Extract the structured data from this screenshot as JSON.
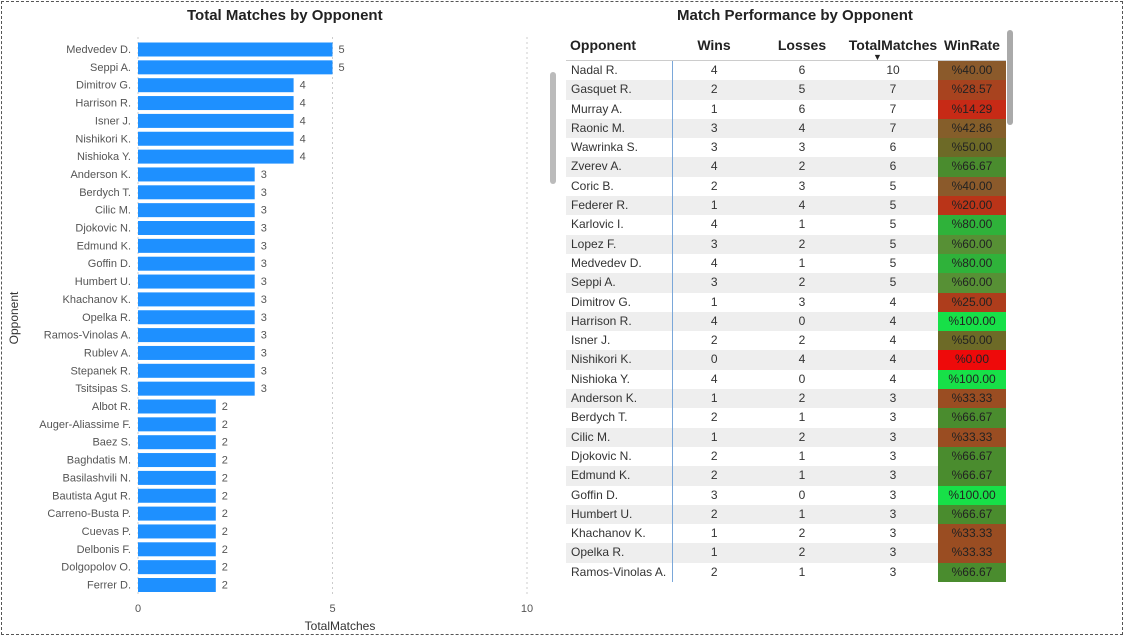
{
  "bar_title": "Total Matches by Opponent",
  "table_title": "Match Performance by Opponent",
  "chart_data": [
    {
      "type": "bar",
      "orientation": "horizontal",
      "title": "Total Matches by Opponent",
      "xlabel": "TotalMatches",
      "ylabel": "Opponent",
      "xlim": [
        0,
        10
      ],
      "xticks": [
        "0",
        "5",
        "10"
      ],
      "color": "#1e90ff",
      "categories": [
        "Medvedev D.",
        "Seppi A.",
        "Dimitrov G.",
        "Harrison R.",
        "Isner J.",
        "Nishikori K.",
        "Nishioka Y.",
        "Anderson K.",
        "Berdych T.",
        "Cilic M.",
        "Djokovic N.",
        "Edmund K.",
        "Goffin D.",
        "Humbert U.",
        "Khachanov K.",
        "Opelka R.",
        "Ramos-Vinolas A.",
        "Rublev A.",
        "Stepanek R.",
        "Tsitsipas S.",
        "Albot R.",
        "Auger-Aliassime F.",
        "Baez S.",
        "Baghdatis M.",
        "Basilashvili N.",
        "Bautista Agut R.",
        "Carreno-Busta P.",
        "Cuevas P.",
        "Delbonis F.",
        "Dolgopolov O.",
        "Ferrer D."
      ],
      "values": [
        5,
        5,
        4,
        4,
        4,
        4,
        4,
        3,
        3,
        3,
        3,
        3,
        3,
        3,
        3,
        3,
        3,
        3,
        3,
        3,
        2,
        2,
        2,
        2,
        2,
        2,
        2,
        2,
        2,
        2,
        2
      ]
    },
    {
      "type": "table",
      "title": "Match Performance by Opponent",
      "columns": [
        "Opponent",
        "Wins",
        "Losses",
        "TotalMatches",
        "WinRate"
      ],
      "sort_indicator": "▼",
      "rows": [
        {
          "opponent": "Nadal R.",
          "wins": "4",
          "losses": "6",
          "total": "10",
          "rate": "%40.00",
          "color": "#8b5a2b"
        },
        {
          "opponent": "Gasquet R.",
          "wins": "2",
          "losses": "5",
          "total": "7",
          "rate": "%28.57",
          "color": "#a8431f"
        },
        {
          "opponent": "Murray A.",
          "wins": "1",
          "losses": "6",
          "total": "7",
          "rate": "%14.29",
          "color": "#c72a16"
        },
        {
          "opponent": "Raonic M.",
          "wins": "3",
          "losses": "4",
          "total": "7",
          "rate": "%42.86",
          "color": "#855e2a"
        },
        {
          "opponent": "Wawrinka S.",
          "wins": "3",
          "losses": "3",
          "total": "6",
          "rate": "%50.00",
          "color": "#6d6a27"
        },
        {
          "opponent": "Zverev A.",
          "wins": "4",
          "losses": "2",
          "total": "6",
          "rate": "%66.67",
          "color": "#4a8c2e"
        },
        {
          "opponent": "Coric B.",
          "wins": "2",
          "losses": "3",
          "total": "5",
          "rate": "%40.00",
          "color": "#8b5a2b"
        },
        {
          "opponent": "Federer R.",
          "wins": "1",
          "losses": "4",
          "total": "5",
          "rate": "%20.00",
          "color": "#ba3418"
        },
        {
          "opponent": "Karlovic I.",
          "wins": "4",
          "losses": "1",
          "total": "5",
          "rate": "%80.00",
          "color": "#2fb23a"
        },
        {
          "opponent": "Lopez F.",
          "wins": "3",
          "losses": "2",
          "total": "5",
          "rate": "%60.00",
          "color": "#579035"
        },
        {
          "opponent": "Medvedev D.",
          "wins": "4",
          "losses": "1",
          "total": "5",
          "rate": "%80.00",
          "color": "#2fb23a"
        },
        {
          "opponent": "Seppi A.",
          "wins": "3",
          "losses": "2",
          "total": "5",
          "rate": "%60.00",
          "color": "#579035"
        },
        {
          "opponent": "Dimitrov G.",
          "wins": "1",
          "losses": "3",
          "total": "4",
          "rate": "%25.00",
          "color": "#ae3d1c"
        },
        {
          "opponent": "Harrison R.",
          "wins": "4",
          "losses": "0",
          "total": "4",
          "rate": "%100.00",
          "color": "#17e048"
        },
        {
          "opponent": "Isner J.",
          "wins": "2",
          "losses": "2",
          "total": "4",
          "rate": "%50.00",
          "color": "#6d6a27"
        },
        {
          "opponent": "Nishikori K.",
          "wins": "0",
          "losses": "4",
          "total": "4",
          "rate": "%0.00",
          "color": "#ee0a0a"
        },
        {
          "opponent": "Nishioka Y.",
          "wins": "4",
          "losses": "0",
          "total": "4",
          "rate": "%100.00",
          "color": "#17e048"
        },
        {
          "opponent": "Anderson K.",
          "wins": "1",
          "losses": "2",
          "total": "3",
          "rate": "%33.33",
          "color": "#9a4d22"
        },
        {
          "opponent": "Berdych T.",
          "wins": "2",
          "losses": "1",
          "total": "3",
          "rate": "%66.67",
          "color": "#4a8c2e"
        },
        {
          "opponent": "Cilic M.",
          "wins": "1",
          "losses": "2",
          "total": "3",
          "rate": "%33.33",
          "color": "#9a4d22"
        },
        {
          "opponent": "Djokovic N.",
          "wins": "2",
          "losses": "1",
          "total": "3",
          "rate": "%66.67",
          "color": "#4a8c2e"
        },
        {
          "opponent": "Edmund K.",
          "wins": "2",
          "losses": "1",
          "total": "3",
          "rate": "%66.67",
          "color": "#4a8c2e"
        },
        {
          "opponent": "Goffin D.",
          "wins": "3",
          "losses": "0",
          "total": "3",
          "rate": "%100.00",
          "color": "#17e048"
        },
        {
          "opponent": "Humbert U.",
          "wins": "2",
          "losses": "1",
          "total": "3",
          "rate": "%66.67",
          "color": "#4a8c2e"
        },
        {
          "opponent": "Khachanov K.",
          "wins": "1",
          "losses": "2",
          "total": "3",
          "rate": "%33.33",
          "color": "#9a4d22"
        },
        {
          "opponent": "Opelka R.",
          "wins": "1",
          "losses": "2",
          "total": "3",
          "rate": "%33.33",
          "color": "#9a4d22"
        },
        {
          "opponent": "Ramos-Vinolas A.",
          "wins": "2",
          "losses": "1",
          "total": "3",
          "rate": "%66.67",
          "color": "#4a8c2e"
        }
      ]
    }
  ]
}
